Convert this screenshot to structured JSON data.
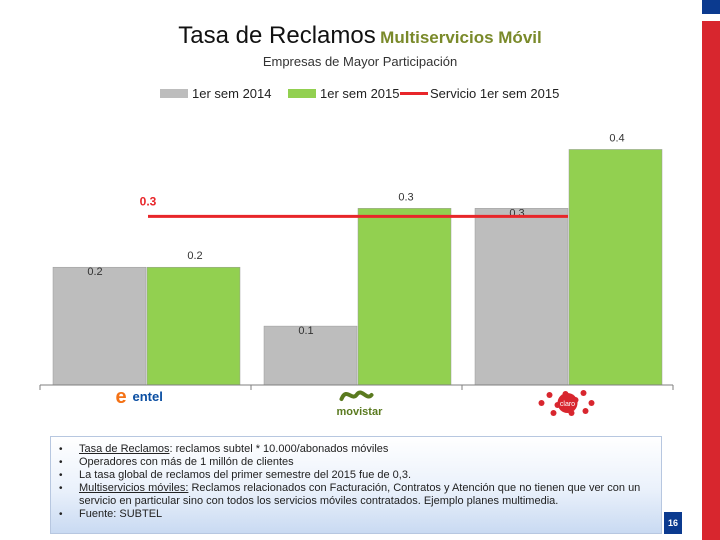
{
  "title": {
    "main": "Tasa de Reclamos",
    "sub": "Multiservicios Móvil"
  },
  "subtitle": "Empresas de Mayor Participación",
  "legend": [
    {
      "label": "1er sem 2014",
      "color": "#bdbdbd",
      "kind": "bar"
    },
    {
      "label": "1er sem 2015",
      "color": "#92d050",
      "kind": "bar"
    },
    {
      "label": "Servicio 1er sem 2015",
      "color": "#e8262a",
      "kind": "line"
    }
  ],
  "chart_data": {
    "type": "bar",
    "categories": [
      "Entel",
      "Movistar",
      "Claro"
    ],
    "series": [
      {
        "name": "1er sem 2014",
        "values": [
          0.2,
          0.1,
          0.3
        ],
        "labels": [
          "0.2",
          "0.1",
          "0.3"
        ],
        "color": "#bdbdbd"
      },
      {
        "name": "1er sem 2015",
        "values": [
          0.2,
          0.3,
          0.4
        ],
        "labels": [
          "0.2",
          "0.3",
          "0.4"
        ],
        "color": "#92d050"
      }
    ],
    "reference_line": {
      "name": "Servicio 1er sem 2015",
      "value": 0.3,
      "label": "0.3",
      "color": "#e8262a"
    },
    "ylim": [
      0,
      0.45
    ],
    "grid": false,
    "legend_position": "top"
  },
  "logos": [
    {
      "icon": "entel-logo",
      "text": "entel",
      "color": "#0a4ea2",
      "accent": "#f47216"
    },
    {
      "icon": "movistar-logo",
      "text": "movistar",
      "color": "#5a7a1f"
    },
    {
      "icon": "claro-logo",
      "text": "claro",
      "color": "#d8262e"
    }
  ],
  "notes": [
    {
      "term": "Tasa de Reclamos",
      "text": ": reclamos subtel * 10.000/abonados móviles"
    },
    {
      "term": "",
      "text": "Operadores con más de  1 millón de clientes"
    },
    {
      "term": "",
      "text": "La tasa global de reclamos del primer semestre del 2015 fue de 0,3."
    },
    {
      "term": "Multiservicios móviles:",
      "text": " Reclamos relacionados con Facturación, Contratos y Atención que no tienen que ver con un servicio en particular sino con todos los servicios móviles contratados. Ejemplo planes multimedia."
    },
    {
      "term": "",
      "text": "Fuente: SUBTEL"
    }
  ],
  "page_number": "16",
  "colors": {
    "flag_blue": "#0b3a8f",
    "flag_red": "#d8262e"
  }
}
